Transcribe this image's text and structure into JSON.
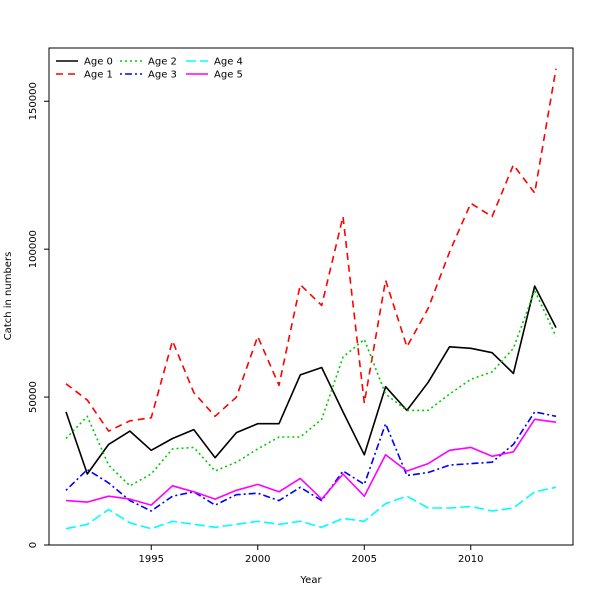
{
  "chart_data": {
    "type": "line",
    "xlabel": "Year",
    "ylabel": "Catch in numbers",
    "xlim": [
      1990.2,
      2014.8
    ],
    "ylim": [
      0,
      168000
    ],
    "xticks": [
      1995,
      2000,
      2005,
      2010
    ],
    "yticks": [
      0,
      50000,
      100000,
      150000
    ],
    "x": [
      1991,
      1992,
      1993,
      1994,
      1995,
      1996,
      1997,
      1998,
      1999,
      2000,
      2001,
      2002,
      2003,
      2004,
      2005,
      2006,
      2007,
      2008,
      2009,
      2010,
      2011,
      2012,
      2013,
      2014
    ],
    "legend_position": "top-left",
    "series": [
      {
        "name": "Age 0",
        "color": "#000000",
        "dash": "solid",
        "values": [
          45000,
          24000,
          34000,
          38500,
          32000,
          36000,
          39000,
          29500,
          38000,
          41000,
          41000,
          57500,
          60000,
          45000,
          30500,
          53500,
          45500,
          55000,
          67000,
          66500,
          65000,
          58000,
          87500,
          73500
        ]
      },
      {
        "name": "Age 1",
        "color": "#ff0000",
        "dash": "dashed",
        "values": [
          54500,
          49000,
          38500,
          42000,
          43000,
          69000,
          51500,
          43500,
          50000,
          70500,
          54000,
          88000,
          81000,
          111000,
          48000,
          89500,
          67000,
          80000,
          99000,
          115500,
          111000,
          128500,
          119000,
          161000
        ]
      },
      {
        "name": "Age 2",
        "color": "#00cd00",
        "dash": "dotted",
        "values": [
          36000,
          43500,
          27000,
          20000,
          24000,
          32500,
          33000,
          25000,
          28000,
          32500,
          36500,
          36500,
          42500,
          63500,
          69500,
          51000,
          45500,
          45500,
          51000,
          56000,
          58500,
          66500,
          86000,
          70500
        ]
      },
      {
        "name": "Age 3",
        "color": "#0000ff",
        "dash": "dotdash",
        "values": [
          18500,
          25500,
          21000,
          15000,
          11500,
          16500,
          18000,
          13500,
          17000,
          17500,
          15000,
          19500,
          15000,
          25000,
          20500,
          41000,
          23500,
          24500,
          27000,
          27500,
          28000,
          34000,
          45000,
          43500
        ]
      },
      {
        "name": "Age 4",
        "color": "#00ffff",
        "dash": "longdash",
        "values": [
          5500,
          7000,
          12000,
          7500,
          5500,
          8000,
          7000,
          6000,
          7000,
          8000,
          7000,
          8000,
          6000,
          9000,
          8000,
          14000,
          16500,
          12500,
          12500,
          13000,
          11500,
          12500,
          18000,
          19500
        ]
      },
      {
        "name": "Age 5",
        "color": "#ff00ff",
        "dash": "solid",
        "values": [
          15000,
          14500,
          16500,
          15500,
          13500,
          20000,
          18000,
          15500,
          18500,
          20500,
          18000,
          22500,
          15500,
          24000,
          16500,
          30500,
          25000,
          27500,
          32000,
          33000,
          30000,
          31500,
          42500,
          41500
        ]
      }
    ]
  }
}
